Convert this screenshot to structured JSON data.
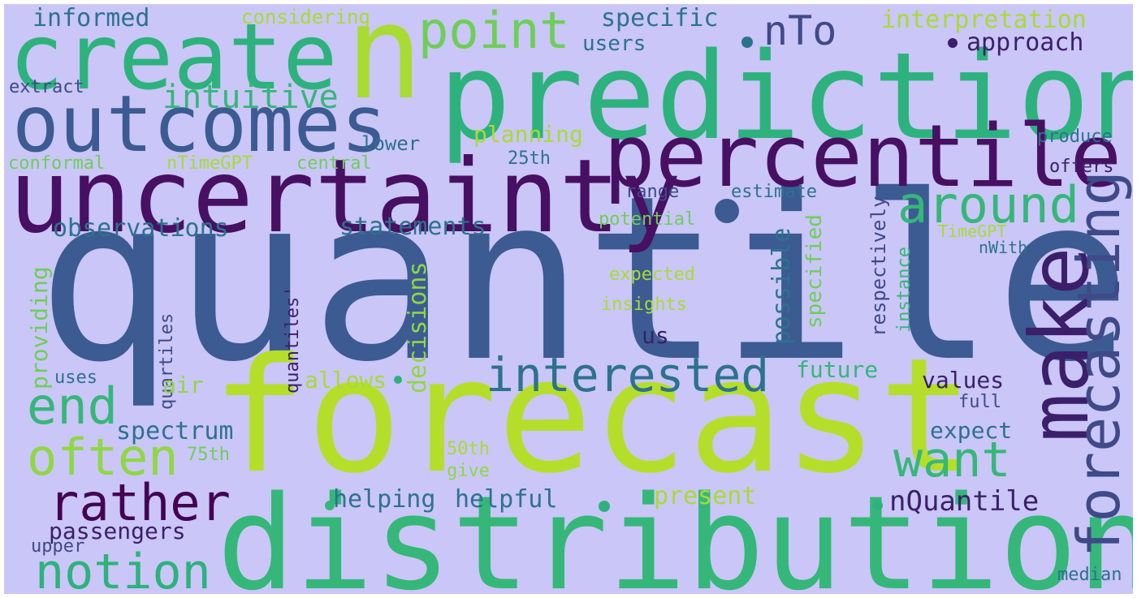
{
  "colors": {
    "background": "#cac6f7",
    "frame": "#ffffff"
  },
  "words": [
    {
      "text": "quantile",
      "color": "#3b5b92"
    },
    {
      "text": "forecast",
      "color": "#b5de2b"
    },
    {
      "text": "distribution",
      "color": "#35b779"
    },
    {
      "text": "prediction",
      "color": "#2db27d"
    },
    {
      "text": "uncertainty",
      "color": "#471063"
    },
    {
      "text": "create",
      "color": "#2db27d"
    },
    {
      "text": "n",
      "color": "#a8db34"
    },
    {
      "text": "percentile",
      "color": "#471063"
    },
    {
      "text": "outcomes",
      "color": "#3b5b92"
    },
    {
      "text": "make",
      "color": "#3b1f6a"
    },
    {
      "text": "forecasting",
      "color": "#3e4a89"
    },
    {
      "text": "point",
      "color": "#6ece58"
    },
    {
      "text": "around",
      "color": "#35b779"
    },
    {
      "text": "interested",
      "color": "#2c728e"
    },
    {
      "text": "want",
      "color": "#35b779"
    },
    {
      "text": "often",
      "color": "#8fd744"
    },
    {
      "text": "end",
      "color": "#35b779"
    },
    {
      "text": "rather",
      "color": "#440154"
    },
    {
      "text": "notion",
      "color": "#2db27d"
    },
    {
      "text": "nTo",
      "color": "#3e4a89"
    },
    {
      "text": "intuitive",
      "color": "#35b779"
    },
    {
      "text": "observations",
      "color": "#2c728e"
    },
    {
      "text": "statements",
      "color": "#2c728e"
    },
    {
      "text": "interpretation",
      "color": "#a8db34"
    },
    {
      "text": "approach",
      "color": "#3b1f6a"
    },
    {
      "text": "specific",
      "color": "#2c728e"
    },
    {
      "text": "users",
      "color": "#2c728e"
    },
    {
      "text": "informed",
      "color": "#2c728e"
    },
    {
      "text": "considering",
      "color": "#a8db34"
    },
    {
      "text": "extract",
      "color": "#3e4a89"
    },
    {
      "text": "planning",
      "color": "#a8db34"
    },
    {
      "text": "lower",
      "color": "#2c728e"
    },
    {
      "text": "conformal",
      "color": "#6ece58"
    },
    {
      "text": "nTimeGPT",
      "color": "#a8db34"
    },
    {
      "text": "central",
      "color": "#6ece58"
    },
    {
      "text": "25th",
      "color": "#2c728e"
    },
    {
      "text": "produce",
      "color": "#2c728e"
    },
    {
      "text": "offers",
      "color": "#3b1f6a"
    },
    {
      "text": "range",
      "color": "#3e4a89"
    },
    {
      "text": "estimate",
      "color": "#2c728e"
    },
    {
      "text": "potential",
      "color": "#6ece58"
    },
    {
      "text": "TimeGPT",
      "color": "#a8db34"
    },
    {
      "text": "nWith",
      "color": "#2c728e"
    },
    {
      "text": "expected",
      "color": "#a8db34"
    },
    {
      "text": "insights",
      "color": "#a8db34"
    },
    {
      "text": "us",
      "color": "#3b1f6a"
    },
    {
      "text": "possible",
      "color": "#2c728e"
    },
    {
      "text": "specified",
      "color": "#6ece58"
    },
    {
      "text": "respectively",
      "color": "#3e4a89"
    },
    {
      "text": "instance",
      "color": "#35b779"
    },
    {
      "text": "quantiles'",
      "color": "#3b1f6a"
    },
    {
      "text": "quartiles",
      "color": "#3e4a89"
    },
    {
      "text": "providing",
      "color": "#6ece58"
    },
    {
      "text": "decisions",
      "color": "#8fd744"
    },
    {
      "text": "future",
      "color": "#35b779"
    },
    {
      "text": "values",
      "color": "#3b1f6a"
    },
    {
      "text": "uses",
      "color": "#2c728e"
    },
    {
      "text": "air",
      "color": "#8fd744"
    },
    {
      "text": "allows",
      "color": "#a8db34"
    },
    {
      "text": "full",
      "color": "#3e4a89"
    },
    {
      "text": "spectrum",
      "color": "#2c728e"
    },
    {
      "text": "expect",
      "color": "#2c728e"
    },
    {
      "text": "75th",
      "color": "#6ece58"
    },
    {
      "text": "50th",
      "color": "#a8db34"
    },
    {
      "text": "give",
      "color": "#8fd744"
    },
    {
      "text": "helping",
      "color": "#2c728e"
    },
    {
      "text": "helpful",
      "color": "#2c728e"
    },
    {
      "text": "present",
      "color": "#a8db34"
    },
    {
      "text": "nQuantile",
      "color": "#3b1f6a"
    },
    {
      "text": "passengers",
      "color": "#3b1f6a"
    },
    {
      "text": "upper",
      "color": "#3e4a89"
    },
    {
      "text": "median",
      "color": "#2c728e"
    }
  ],
  "dots": [
    {
      "color": "#2c728e"
    },
    {
      "color": "#3b1f6a"
    },
    {
      "color": "#35b779"
    },
    {
      "color": "#3b5b92"
    },
    {
      "color": "#2db27d"
    },
    {
      "color": "#2db27d"
    },
    {
      "color": "#2db27d"
    },
    {
      "color": "#3b1f6a"
    }
  ]
}
